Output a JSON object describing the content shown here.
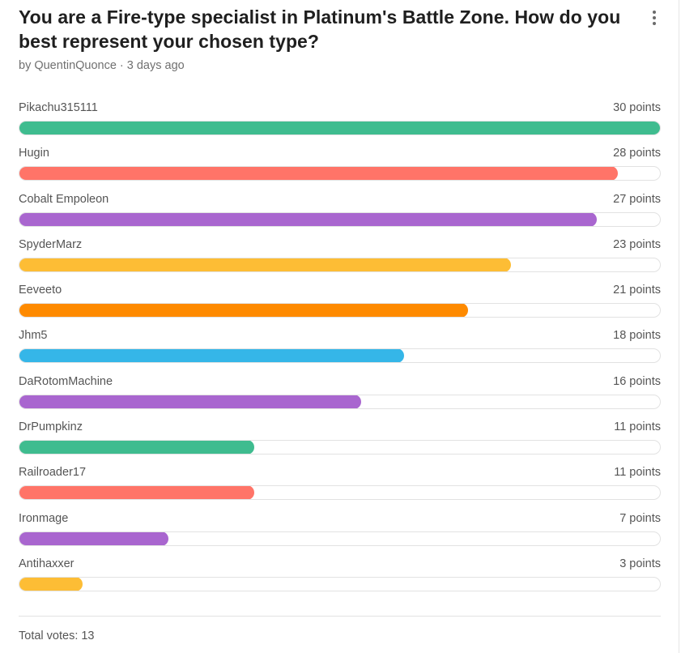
{
  "poll": {
    "title": "You are a Fire-type specialist in Platinum's Battle Zone. How do you best represent your chosen type?",
    "author": "by QuentinQuonce",
    "separator": "·",
    "time": "3 days ago",
    "max_points": 30,
    "options": [
      {
        "label": "Pikachu315111",
        "points_text": "30 points",
        "points": 30,
        "color": "#3fbc8f"
      },
      {
        "label": "Hugin",
        "points_text": "28 points",
        "points": 28,
        "color": "#ff7468"
      },
      {
        "label": "Cobalt Empoleon",
        "points_text": "27 points",
        "points": 27,
        "color": "#a966cf"
      },
      {
        "label": "SpyderMarz",
        "points_text": "23 points",
        "points": 23,
        "color": "#fdbd35"
      },
      {
        "label": "Eeveeto",
        "points_text": "21 points",
        "points": 21,
        "color": "#fe8a00"
      },
      {
        "label": "Jhm5",
        "points_text": "18 points",
        "points": 18,
        "color": "#35b6e8"
      },
      {
        "label": "DaRotomMachine",
        "points_text": "16 points",
        "points": 16,
        "color": "#a966cf"
      },
      {
        "label": "DrPumpkinz",
        "points_text": "11 points",
        "points": 11,
        "color": "#3fbc8f"
      },
      {
        "label": "Railroader17",
        "points_text": "11 points",
        "points": 11,
        "color": "#ff7468"
      },
      {
        "label": "Ironmage",
        "points_text": "7 points",
        "points": 7,
        "color": "#a966cf"
      },
      {
        "label": "Antihaxxer",
        "points_text": "3 points",
        "points": 3,
        "color": "#fdbd35"
      }
    ],
    "total_votes": "Total votes: 13"
  }
}
